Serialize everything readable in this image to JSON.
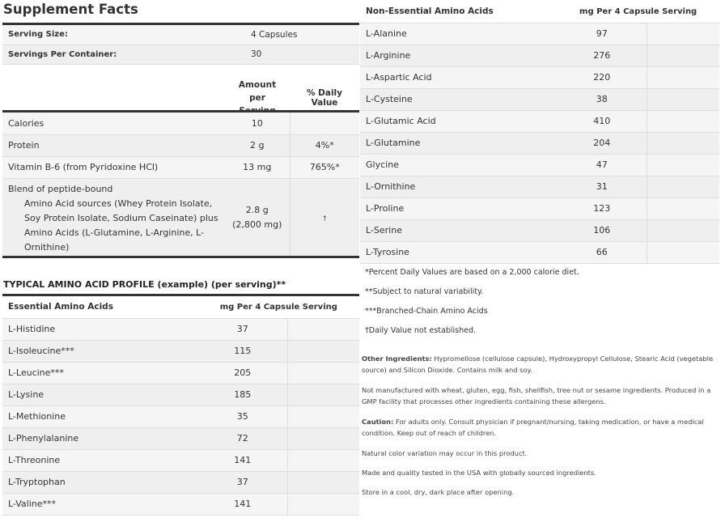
{
  "title": "Supplement Facts",
  "serving": [
    {
      "label": "Serving Size:",
      "value": "4 Capsules"
    },
    {
      "label": "Servings Per Container:",
      "value": "30"
    }
  ],
  "facts_header": {
    "amount": "Amount per Serving",
    "dv": "% Daily Value"
  },
  "facts": [
    {
      "name": "Calories",
      "amount": "10",
      "dv": ""
    },
    {
      "name": "Protein",
      "amount": "2 g",
      "dv": "4%*"
    },
    {
      "name": "Vitamin B-6 (from Pyridoxine HCl)",
      "amount": "13 mg",
      "dv": "765%*"
    }
  ],
  "blend": {
    "name": "Blend of peptide-bound",
    "sub": "Amino Acid sources (Whey Protein Isolate, Soy Protein Isolate, Sodium Caseinate) plus Amino Acids (L-Glutamine, L-Arginine, L-Ornithine)",
    "amount": "2.8 g (2,800 mg)",
    "dv": "†"
  },
  "profile_title": "TYPICAL AMINO ACID PROFILE (example) (per serving)**",
  "essential": {
    "header": "Essential Amino Acids",
    "col": "mg Per 4 Capsule Serving",
    "rows": [
      {
        "name": "L-Histidine",
        "value": "37"
      },
      {
        "name": "L-Isoleucine***",
        "value": "115"
      },
      {
        "name": "L-Leucine***",
        "value": "205"
      },
      {
        "name": "L-Lysine",
        "value": "185"
      },
      {
        "name": "L-Methionine",
        "value": "35"
      },
      {
        "name": "L-Phenylalanine",
        "value": "72"
      },
      {
        "name": "L-Threonine",
        "value": "141"
      },
      {
        "name": "L-Tryptophan",
        "value": "37"
      },
      {
        "name": "L-Valine***",
        "value": "141"
      }
    ]
  },
  "nonessential": {
    "header": "Non-Essential Amino Acids",
    "col": "mg Per 4 Capsule Serving",
    "rows": [
      {
        "name": "L-Alanine",
        "value": "97"
      },
      {
        "name": "L-Arginine",
        "value": "276"
      },
      {
        "name": "L-Aspartic Acid",
        "value": "220"
      },
      {
        "name": "L-Cysteine",
        "value": "38"
      },
      {
        "name": "L-Glutamic Acid",
        "value": "410"
      },
      {
        "name": "L-Glutamine",
        "value": "204"
      },
      {
        "name": "Glycine",
        "value": "47"
      },
      {
        "name": "L-Ornithine",
        "value": "31"
      },
      {
        "name": "L-Proline",
        "value": "123"
      },
      {
        "name": "L-Serine",
        "value": "106"
      },
      {
        "name": "L-Tyrosine",
        "value": "66"
      }
    ]
  },
  "notes": [
    "*Percent Daily Values are based on a 2,000 calorie diet.",
    "**Subject to natural variability.",
    "***Branched-Chain Amino Acids",
    "†Daily Value not established."
  ],
  "other": {
    "label": "Other Ingredients:",
    "text": " Hypromellose (cellulose capsule), Hydroxypropyl Cellulose, Stearic Acid (vegetable source) and Silicon Dioxide. Contains milk and soy."
  },
  "allergen": "Not manufactured with wheat, gluten, egg, fish, shellfish,  tree nut or sesame ingredients. Produced in a GMP facility that processes other ingredients containing these allergens.",
  "caution": {
    "label": "Caution:",
    "text": " For adults only. Consult physician if pregnant/nursing, taking medication, or have a medical condition. Keep out of reach of children."
  },
  "extra": [
    "Natural color variation may occur in this product.",
    "Made and quality tested in the USA with globally sourced ingredients.",
    "Store in a cool, dry, dark place after opening."
  ]
}
